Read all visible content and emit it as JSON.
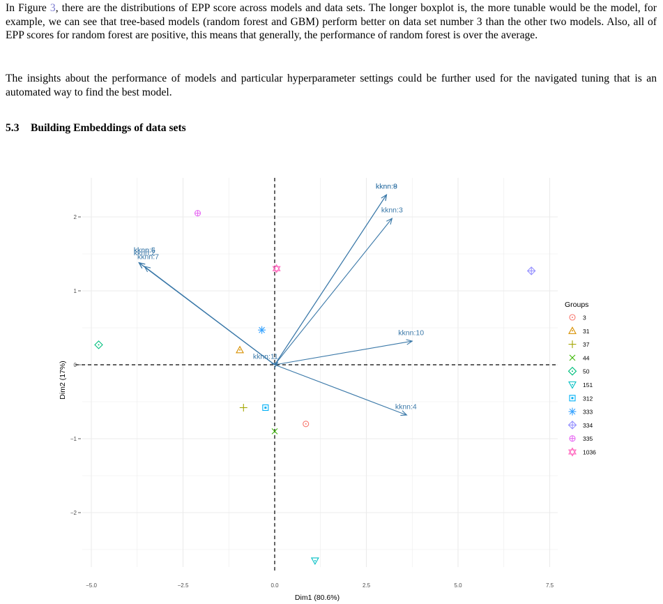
{
  "text": {
    "p1_before": "In Figure ",
    "p1_ref": "3",
    "p1_after": ", there are the distributions of EPP score across models and data sets. The longer boxplot is, the more tunable would be the model, for example, we can see that tree-based models (random forest and GBM) perform better on data set number 3 than the other two models. Also, all of EPP scores for random forest are positive, this means that generally, the performance of random forest is over the average.",
    "p2": "The insights about the performance of models and particular hyperparameter settings could be further used for the navigated tuning that is an automated way to find the best model.",
    "section_number": "5.3",
    "section_title": "Building Embeddings of data sets"
  },
  "colors": {
    "arrow": "#3a78a8",
    "axis_dash": "#000000",
    "grid": "#ebebeb"
  },
  "chart_data": {
    "type": "scatter",
    "xlabel": "Dim1 (80.6%)",
    "ylabel": "Dim2 (17%)",
    "xlim": [
      -5.5,
      7.9
    ],
    "ylim": [
      -2.65,
      2.5
    ],
    "x_ticks": [
      -5.0,
      -2.5,
      0.0,
      2.5,
      5.0,
      7.5
    ],
    "x_tick_labels": [
      "−5.0",
      "−2.5",
      "0.0",
      "2.5",
      "5.0",
      "7.5"
    ],
    "y_ticks": [
      -2,
      -1,
      0,
      1,
      2
    ],
    "y_tick_labels": [
      "−2",
      "−1",
      "0",
      "1",
      "2"
    ],
    "grid": true,
    "legend_title": "Groups",
    "legend_position": "right",
    "points": [
      {
        "group": "3",
        "x": 0.85,
        "y": -0.8,
        "color": "#f8766d",
        "marker": "circle-dot"
      },
      {
        "group": "31",
        "x": -0.95,
        "y": 0.2,
        "color": "#d89000",
        "marker": "triangle-dot"
      },
      {
        "group": "37",
        "x": -0.85,
        "y": -0.58,
        "color": "#a3a500",
        "marker": "plus"
      },
      {
        "group": "44",
        "x": 0.0,
        "y": -0.9,
        "color": "#39b600",
        "marker": "cross"
      },
      {
        "group": "50",
        "x": -4.8,
        "y": 0.27,
        "color": "#00bf7d",
        "marker": "diamond-dot"
      },
      {
        "group": "151",
        "x": 1.1,
        "y": -2.65,
        "color": "#00bfc4",
        "marker": "triangle-down-dot"
      },
      {
        "group": "312",
        "x": -0.25,
        "y": -0.58,
        "color": "#00b0f6",
        "marker": "square-dot"
      },
      {
        "group": "333",
        "x": -0.35,
        "y": 0.47,
        "color": "#35a2ff",
        "marker": "asterisk"
      },
      {
        "group": "334",
        "x": 7.0,
        "y": 1.27,
        "color": "#9590ff",
        "marker": "diamond-plus"
      },
      {
        "group": "335",
        "x": -2.1,
        "y": 2.05,
        "color": "#e76bf3",
        "marker": "circle-plus"
      },
      {
        "group": "1036",
        "x": 0.05,
        "y": 1.3,
        "color": "#ff62bc",
        "marker": "star-david"
      }
    ],
    "arrows": [
      {
        "label": "kknn:9",
        "x": 3.05,
        "y": 2.3
      },
      {
        "label": "kknn:8",
        "x": 3.05,
        "y": 2.3
      },
      {
        "label": "kknn:3",
        "x": 3.2,
        "y": 1.98
      },
      {
        "label": "kknn:5",
        "x": -3.7,
        "y": 1.38
      },
      {
        "label": "kknn:6",
        "x": -3.7,
        "y": 1.38
      },
      {
        "label": "kknn:2",
        "x": -3.7,
        "y": 1.38
      },
      {
        "label": "kknn:7",
        "x": -3.55,
        "y": 1.33
      },
      {
        "label": "kknn:10",
        "x": 3.75,
        "y": 0.32
      },
      {
        "label": "kknn:4",
        "x": 3.6,
        "y": -0.68
      },
      {
        "label": "kknn:11",
        "x": 0.08,
        "y": 0.03
      }
    ],
    "arrow_labels": [
      {
        "text": "kknn:9",
        "x": 3.05,
        "y": 2.38
      },
      {
        "text": "kknn:8",
        "x": 3.05,
        "y": 2.38
      },
      {
        "text": "kknn:3",
        "x": 3.2,
        "y": 2.06
      },
      {
        "text": "kknn:5",
        "x": -3.55,
        "y": 1.52
      },
      {
        "text": "kknn:6",
        "x": -3.55,
        "y": 1.52
      },
      {
        "text": "kknn:2",
        "x": -3.55,
        "y": 1.48
      },
      {
        "text": "kknn:7",
        "x": -3.45,
        "y": 1.43
      },
      {
        "text": "kknn:10",
        "x": 3.72,
        "y": 0.4
      },
      {
        "text": "kknn:4",
        "x": 3.58,
        "y": -0.6
      },
      {
        "text": "kknn:11",
        "x": -0.25,
        "y": 0.08
      }
    ]
  }
}
